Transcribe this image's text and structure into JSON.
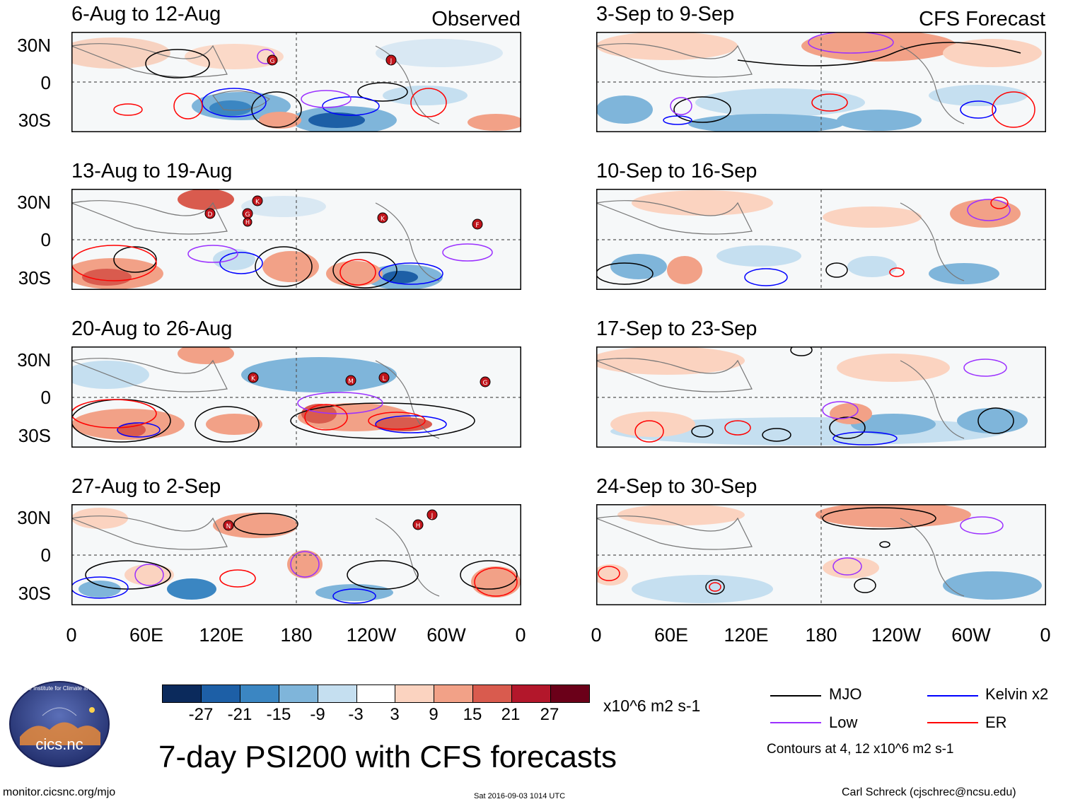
{
  "panels_left": [
    {
      "title": "6-Aug to 12-Aug",
      "label": "Observed"
    },
    {
      "title": "13-Aug to 19-Aug",
      "label": ""
    },
    {
      "title": "20-Aug to 26-Aug",
      "label": ""
    },
    {
      "title": "27-Aug to 2-Sep",
      "label": ""
    }
  ],
  "panels_right": [
    {
      "title": "3-Sep to 9-Sep",
      "label": "CFS Forecast"
    },
    {
      "title": "10-Sep to 16-Sep",
      "label": ""
    },
    {
      "title": "17-Sep to 23-Sep",
      "label": ""
    },
    {
      "title": "24-Sep to 30-Sep",
      "label": ""
    }
  ],
  "lat_labels": [
    "30N",
    "0",
    "30S"
  ],
  "lon_labels": [
    "0",
    "60E",
    "120E",
    "180",
    "120W",
    "60W",
    "0"
  ],
  "colorbar": {
    "ticks": [
      "-27",
      "-21",
      "-15",
      "-9",
      "-3",
      "3",
      "9",
      "15",
      "21",
      "27"
    ],
    "colors": [
      "#0b2a5c",
      "#1d5fa6",
      "#3b86c2",
      "#7fb5da",
      "#c5dff0",
      "#ffffff",
      "#fbd3c0",
      "#f2a187",
      "#d95b4e",
      "#b3172b",
      "#6b0019"
    ],
    "unit": "x10^6 m2 s-1"
  },
  "legend": {
    "items": [
      {
        "label": "MJO",
        "color": "#000000"
      },
      {
        "label": "Kelvin x2",
        "color": "#0000ff"
      },
      {
        "label": "Low",
        "color": "#9b30ff"
      },
      {
        "label": "ER",
        "color": "#ff0000"
      }
    ],
    "contours_note": "Contours at 4, 12 x10^6 m2 s-1"
  },
  "main_title": "7-day PSI200 with CFS forecasts",
  "logo": {
    "arc_text": "Cooperative Institute for Climate and Satellites",
    "name": "cics.nc"
  },
  "footer": {
    "url": "monitor.cicsnc.org/mjo",
    "timestamp": "Sat 2016-09-03 1014 UTC",
    "author": "Carl Schreck (cjschrec@ncsu.edu)"
  },
  "storm_markers": {
    "panel_1": [
      "G",
      "J"
    ],
    "panel_2": [
      "D",
      "G",
      "H",
      "K",
      "K",
      "F"
    ],
    "panel_3": [
      "K",
      "M",
      "L",
      "G"
    ],
    "panel_4": [
      "N",
      "H",
      "J"
    ]
  }
}
